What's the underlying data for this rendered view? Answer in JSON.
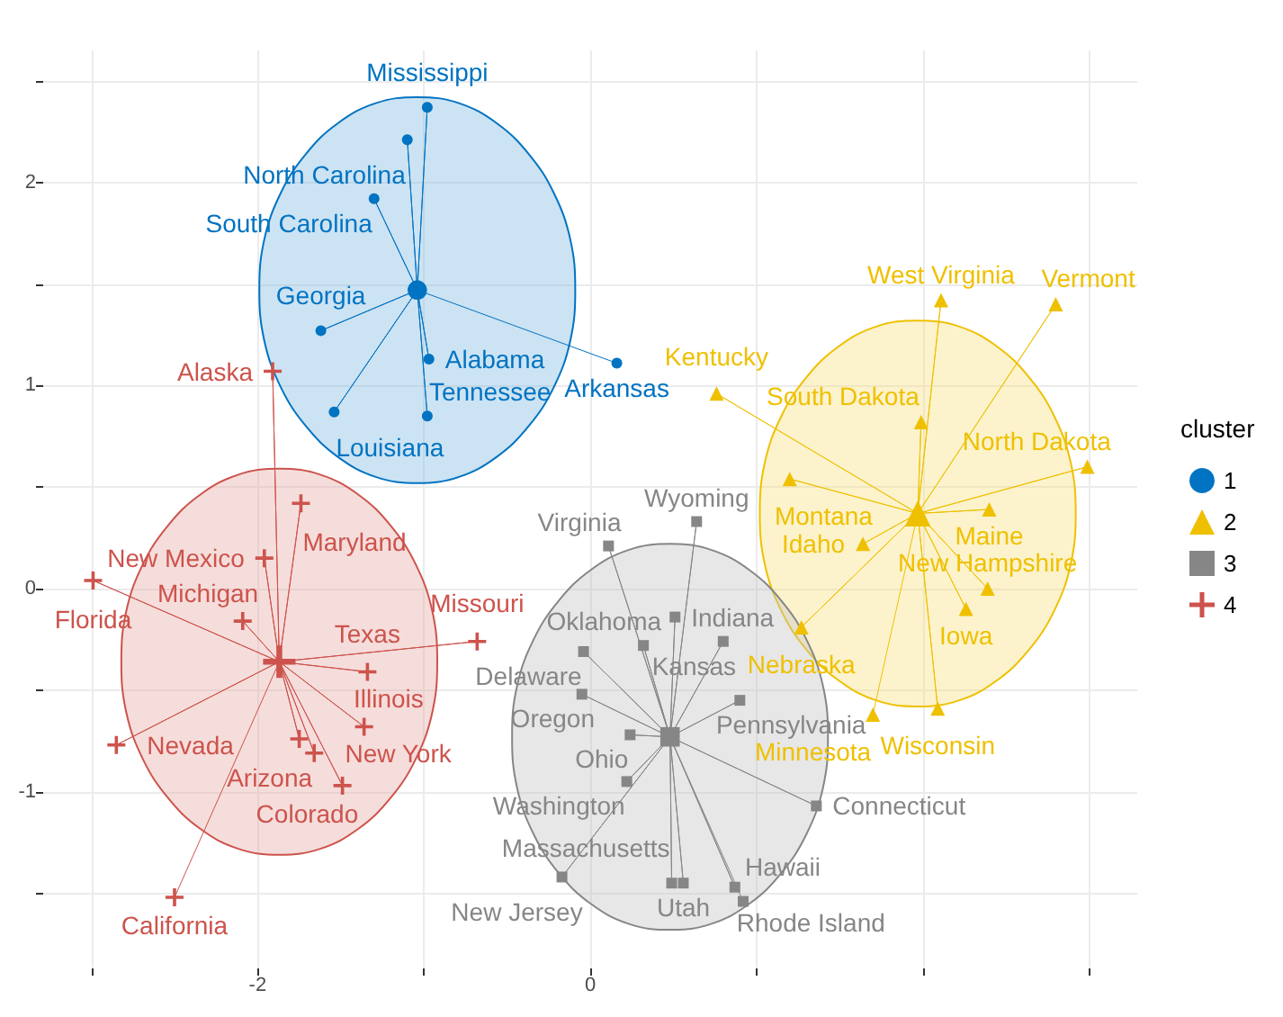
{
  "chart_data": {
    "type": "scatter",
    "xlim": [
      -3.29,
      3.29
    ],
    "ylim": [
      -1.87,
      2.65
    ],
    "xticks": [
      {
        "value": -3,
        "label": null
      },
      -2,
      {
        "value": -1,
        "label": null
      },
      0,
      {
        "value": 1,
        "label": null
      },
      {
        "value": 2,
        "label": null
      },
      {
        "value": 3,
        "label": null
      }
    ],
    "yticks": [
      {
        "value": -1.5,
        "label": null
      },
      -1,
      {
        "value": -0.5,
        "label": null
      },
      0,
      {
        "value": 0.5,
        "label": null
      },
      1,
      {
        "value": 1.5,
        "label": null
      },
      2,
      {
        "value": 2.5,
        "label": null
      }
    ],
    "grid": true,
    "legend": "right",
    "legend_title": "cluster",
    "series": [
      {
        "type": "area",
        "color": "#0073c2",
        "x": [
          -0.09,
          -0.12,
          -0.22,
          -0.37,
          -0.56,
          -0.79,
          -1.04,
          -1.29,
          -1.52,
          -1.71,
          -1.86,
          -1.96,
          -1.99,
          -1.96,
          -1.86,
          -1.71,
          -1.52,
          -1.29,
          -1.04,
          -0.79,
          -0.56,
          -0.37,
          -0.22,
          -0.12
        ],
        "values": [
          1.47,
          1.72,
          1.95,
          2.14,
          2.29,
          2.39,
          2.42,
          2.39,
          2.29,
          2.14,
          1.95,
          1.72,
          1.47,
          1.22,
          0.99,
          0.8,
          0.65,
          0.55,
          0.52,
          0.55,
          0.65,
          0.8,
          0.99,
          1.22
        ]
      },
      {
        "type": "area",
        "color": "#efc000",
        "x": [
          2.92,
          2.89,
          2.79,
          2.64,
          2.45,
          2.22,
          1.97,
          1.72,
          1.49,
          1.3,
          1.15,
          1.05,
          1.02,
          1.05,
          1.15,
          1.3,
          1.49,
          1.72,
          1.97,
          2.22,
          2.45,
          2.64,
          2.79,
          2.89
        ],
        "values": [
          0.37,
          0.62,
          0.85,
          1.04,
          1.19,
          1.29,
          1.32,
          1.29,
          1.19,
          1.04,
          0.85,
          0.62,
          0.37,
          0.12,
          -0.11,
          -0.3,
          -0.45,
          -0.55,
          -0.58,
          -0.55,
          -0.45,
          -0.3,
          -0.11,
          0.12
        ]
      },
      {
        "type": "area",
        "color": "#868686",
        "x": [
          1.43,
          1.4,
          1.3,
          1.15,
          0.96,
          0.73,
          0.48,
          0.23,
          0.0,
          -0.19,
          -0.34,
          -0.44,
          -0.47,
          -0.44,
          -0.34,
          -0.19,
          0.0,
          0.23,
          0.48,
          0.73,
          0.96,
          1.15,
          1.3,
          1.4
        ],
        "values": [
          -0.73,
          -0.48,
          -0.25,
          -0.06,
          0.09,
          0.19,
          0.22,
          0.19,
          0.09,
          -0.06,
          -0.25,
          -0.48,
          -0.73,
          -0.98,
          -1.21,
          -1.4,
          -1.55,
          -1.65,
          -1.68,
          -1.65,
          -1.55,
          -1.4,
          -1.21,
          -0.98
        ]
      },
      {
        "type": "area",
        "color": "#cd534c",
        "x": [
          -0.92,
          -0.95,
          -1.05,
          -1.2,
          -1.39,
          -1.62,
          -1.87,
          -2.12,
          -2.35,
          -2.54,
          -2.69,
          -2.79,
          -2.82,
          -2.79,
          -2.69,
          -2.54,
          -2.35,
          -2.12,
          -1.87,
          -1.62,
          -1.39,
          -1.2,
          -1.05,
          -0.95
        ],
        "values": [
          -0.36,
          -0.11,
          0.12,
          0.31,
          0.46,
          0.56,
          0.59,
          0.56,
          0.46,
          0.31,
          0.12,
          -0.11,
          -0.36,
          -0.61,
          -0.84,
          -1.03,
          -1.18,
          -1.28,
          -1.31,
          -1.28,
          -1.18,
          -1.03,
          -0.84,
          -0.61
        ]
      },
      {
        "type": "line",
        "color": "#0073c2",
        "line_style": "solid",
        "x": [
          -1.04,
          -0.98,
          -1.04,
          -1.1,
          -1.04,
          -1.3,
          -1.04,
          -1.62,
          -1.04,
          -1.54,
          -1.04,
          -0.97,
          -1.04,
          -0.98,
          -1.04,
          0.16
        ],
        "values": [
          1.47,
          2.37,
          1.47,
          2.21,
          1.47,
          1.92,
          1.47,
          1.27,
          1.47,
          0.87,
          1.47,
          1.13,
          1.47,
          0.85,
          1.47,
          1.11
        ]
      },
      {
        "type": "line",
        "color": "#efc000",
        "line_style": "solid",
        "x": [
          1.97,
          2.11,
          1.97,
          2.8,
          1.97,
          0.76,
          1.97,
          1.99,
          1.97,
          2.99,
          1.97,
          1.2,
          1.97,
          2.4,
          1.97,
          1.64,
          1.97,
          2.39,
          1.97,
          2.26,
          1.97,
          1.27,
          1.97,
          2.09,
          1.97,
          1.7
        ],
        "values": [
          0.37,
          1.42,
          0.37,
          1.4,
          0.37,
          0.96,
          0.37,
          0.82,
          0.37,
          0.6,
          0.37,
          0.54,
          0.37,
          0.39,
          0.37,
          0.22,
          0.37,
          0.0,
          0.37,
          -0.1,
          0.37,
          -0.19,
          0.37,
          -0.59,
          0.37,
          -0.62
        ]
      },
      {
        "type": "line",
        "color": "#868686",
        "line_style": "solid",
        "x": [
          0.48,
          0.64,
          0.48,
          0.11,
          0.48,
          0.51,
          0.48,
          0.8,
          0.48,
          0.32,
          0.48,
          -0.04,
          0.48,
          -0.05,
          0.48,
          0.9,
          0.48,
          0.24,
          0.48,
          0.22,
          0.48,
          1.36,
          0.48,
          -0.17,
          0.48,
          0.56,
          0.48,
          0.49,
          0.48,
          0.87,
          0.48,
          0.92
        ],
        "values": [
          -0.73,
          0.33,
          -0.73,
          0.21,
          -0.73,
          -0.14,
          -0.73,
          -0.26,
          -0.73,
          -0.28,
          -0.73,
          -0.31,
          -0.73,
          -0.52,
          -0.73,
          -0.55,
          -0.73,
          -0.72,
          -0.73,
          -0.95,
          -0.73,
          -1.07,
          -0.73,
          -1.42,
          -0.73,
          -1.45,
          -0.73,
          -1.45,
          -0.73,
          -1.47,
          -0.73,
          -1.54
        ]
      },
      {
        "type": "line",
        "color": "#cd534c",
        "line_style": "solid",
        "x": [
          -1.87,
          -1.91,
          -1.87,
          -1.74,
          -1.87,
          -1.96,
          -1.87,
          -2.99,
          -1.87,
          -2.09,
          -1.87,
          -0.68,
          -1.87,
          -1.34,
          -1.87,
          -1.36,
          -1.87,
          -1.75,
          -1.87,
          -1.66,
          -1.87,
          -1.49,
          -1.87,
          -2.85,
          -1.87,
          -2.5
        ],
        "values": [
          -0.36,
          1.07,
          -0.36,
          0.42,
          -0.36,
          0.15,
          -0.36,
          0.04,
          -0.36,
          -0.16,
          -0.36,
          -0.26,
          -0.36,
          -0.41,
          -0.36,
          -0.68,
          -0.36,
          -0.74,
          -0.36,
          -0.81,
          -0.36,
          -0.97,
          -0.36,
          -0.77,
          -0.36,
          -1.52
        ]
      },
      {
        "name": "1",
        "type": "scatter",
        "color": "#0073c2",
        "marker": "circle",
        "x": [
          -0.98,
          -1.1,
          -1.3,
          -1.62,
          -1.54,
          -0.97,
          -0.98,
          0.16
        ],
        "values": [
          2.37,
          2.21,
          1.92,
          1.27,
          0.87,
          1.13,
          0.85,
          1.11
        ],
        "value_labels": [
          "Mississippi",
          "North Carolina",
          "South Carolina",
          "Georgia",
          "Louisiana",
          "Alabama",
          "Tennessee",
          "Arkansas"
        ]
      },
      {
        "name": "2",
        "type": "scatter",
        "color": "#efc000",
        "marker": "triangle",
        "x": [
          2.11,
          2.8,
          0.76,
          1.99,
          2.99,
          1.2,
          2.4,
          1.64,
          2.39,
          2.26,
          1.27,
          2.09,
          1.7
        ],
        "values": [
          1.42,
          1.4,
          0.96,
          0.82,
          0.6,
          0.54,
          0.39,
          0.22,
          0.0,
          -0.1,
          -0.19,
          -0.59,
          -0.62
        ],
        "value_labels": [
          "West Virginia",
          "Vermont",
          "Kentucky",
          "South Dakota",
          "North Dakota",
          "Montana",
          "Maine",
          "Idaho",
          "New Hampshire",
          "Iowa",
          "Nebraska",
          "Wisconsin",
          "Minnesota"
        ]
      },
      {
        "name": "3",
        "type": "scatter",
        "color": "#868686",
        "marker": "square",
        "x": [
          0.64,
          0.11,
          0.51,
          0.8,
          0.32,
          -0.04,
          -0.05,
          0.9,
          0.24,
          0.22,
          1.36,
          -0.17,
          0.56,
          0.49,
          0.87,
          0.92
        ],
        "values": [
          0.33,
          0.21,
          -0.14,
          -0.26,
          -0.28,
          -0.31,
          -0.52,
          -0.55,
          -0.72,
          -0.95,
          -1.07,
          -1.42,
          -1.45,
          -1.45,
          -1.47,
          -1.54
        ],
        "value_labels": [
          "Wyoming",
          "Virginia",
          "Indiana",
          "Kansas",
          "Oklahoma",
          "Delaware",
          "Oregon",
          "Pennsylvania",
          "Ohio",
          "Washington",
          "Connecticut",
          "New Jersey",
          "Utah",
          "Massachusetts",
          "Rhode Island",
          "Hawaii"
        ]
      },
      {
        "name": "4",
        "type": "scatter",
        "color": "#cd534c",
        "marker": "cross",
        "x": [
          -1.91,
          -1.74,
          -1.96,
          -2.99,
          -2.09,
          -0.68,
          -1.34,
          -1.36,
          -1.75,
          -1.66,
          -1.49,
          -2.85,
          -2.5
        ],
        "values": [
          1.07,
          0.42,
          0.15,
          0.04,
          -0.16,
          -0.26,
          -0.41,
          -0.68,
          -0.74,
          -0.81,
          -0.97,
          -0.77,
          -1.52
        ],
        "value_labels": [
          "Alaska",
          "Maryland",
          "New Mexico",
          "Florida",
          "Michigan",
          "Missouri",
          "Texas",
          "Illinois",
          "Arizona",
          "New York",
          "Colorado",
          "Nevada",
          "California"
        ]
      },
      {
        "type": "scatter",
        "color": "#0073c2",
        "marker": "circle",
        "x": [
          -1.04
        ],
        "values": [
          1.47
        ]
      },
      {
        "type": "scatter",
        "color": "#efc000",
        "marker": "triangle",
        "x": [
          1.97
        ],
        "values": [
          0.37
        ]
      },
      {
        "type": "scatter",
        "color": "#868686",
        "marker": "square",
        "x": [
          0.48
        ],
        "values": [
          -0.73
        ]
      },
      {
        "type": "scatter",
        "color": "#cd534c",
        "marker": "cross",
        "x": [
          -1.87
        ],
        "values": [
          -0.36
        ]
      }
    ]
  }
}
